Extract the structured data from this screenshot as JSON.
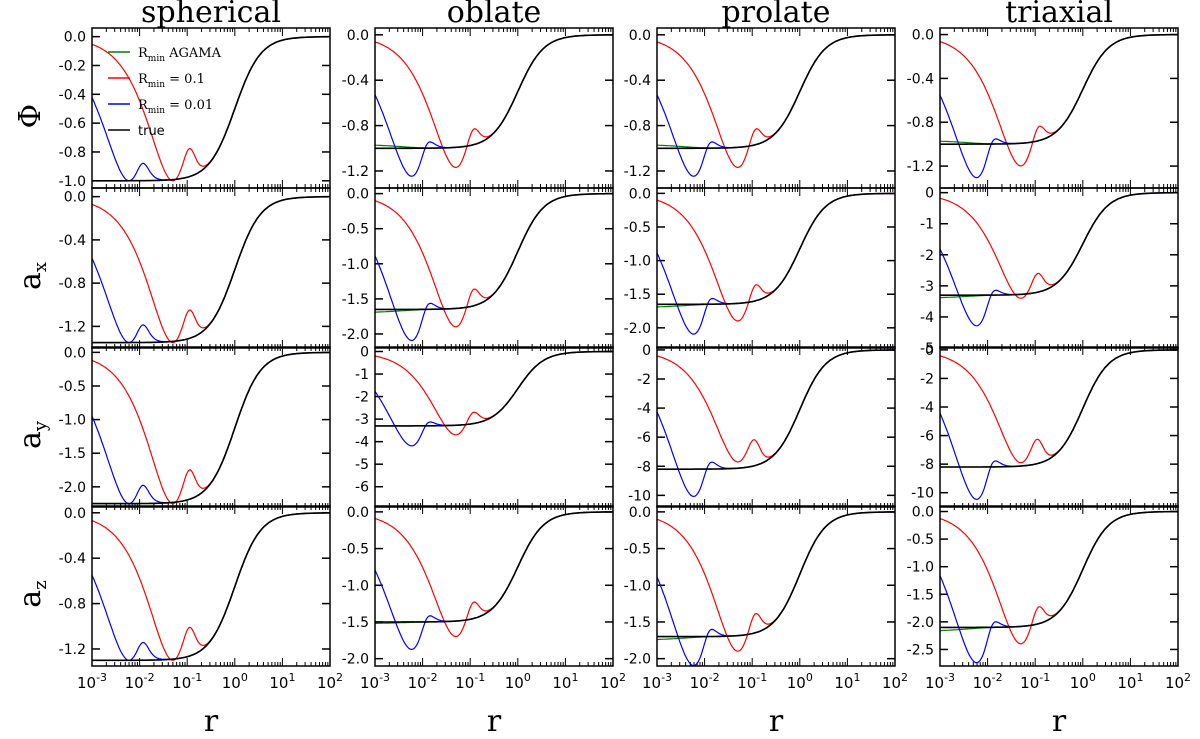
{
  "figure": {
    "columns": [
      "spherical",
      "oblate",
      "prolate",
      "triaxial"
    ],
    "row_labels": [
      {
        "main": "Φ",
        "sub": ""
      },
      {
        "main": "a",
        "sub": "x"
      },
      {
        "main": "a",
        "sub": "y"
      },
      {
        "main": "a",
        "sub": "z"
      }
    ],
    "x_axis_label": "r",
    "x_tick_labels": [
      {
        "base": "10",
        "exp": "-3"
      },
      {
        "base": "10",
        "exp": "-2"
      },
      {
        "base": "10",
        "exp": "-1"
      },
      {
        "base": "10",
        "exp": "0"
      },
      {
        "base": "10",
        "exp": "1"
      },
      {
        "base": "10",
        "exp": "2"
      }
    ],
    "legend": [
      {
        "main": "R",
        "sub": "min",
        "rest": " AGAMA",
        "color": "#008000"
      },
      {
        "main": "R",
        "sub": "min",
        "rest": " = 0.1",
        "color": "#ff0000"
      },
      {
        "main": "R",
        "sub": "min",
        "rest": " = 0.01",
        "color": "#0000ff"
      },
      {
        "main": "true",
        "sub": "",
        "rest": "",
        "color": "#000000"
      }
    ]
  },
  "chart_data": {
    "type": "line",
    "x_scale": "log",
    "xlim": [
      0.001,
      100
    ],
    "xlabel": "r",
    "columns": [
      "spherical",
      "oblate",
      "prolate",
      "triaxial"
    ],
    "rows": [
      "Φ",
      "a_x",
      "a_y",
      "a_z"
    ],
    "series_colors": {
      "agama": "#008000",
      "rmin_0.1": "#ff0000",
      "rmin_0.01": "#0000ff",
      "true": "#000000"
    },
    "panels": [
      [
        {
          "ylim": [
            -1.05,
            0.06
          ],
          "yticks": [
            0.0,
            -0.2,
            -0.4,
            -0.6,
            -0.8,
            -1.0
          ],
          "tick_labels": [
            "0.0",
            "-0.2",
            "-0.4",
            "-0.6",
            "-0.8",
            "-1.0"
          ],
          "center": -1.0,
          "low": -1.0,
          "min_r1": -1.0,
          "min_r2": -1.0
        },
        {
          "ylim": [
            -1.35,
            0.06
          ],
          "yticks": [
            0.0,
            -0.4,
            -0.8,
            -1.2
          ],
          "tick_labels": [
            "0.0",
            "-0.4",
            "-0.8",
            "-1.2"
          ],
          "center": -1.0,
          "low": -0.93,
          "min_r1": -1.17,
          "min_r2": -1.25
        },
        {
          "ylim": [
            -1.35,
            0.06
          ],
          "yticks": [
            0.0,
            -0.4,
            -0.8,
            -1.2
          ],
          "tick_labels": [
            "0.0",
            "-0.4",
            "-0.8",
            "-1.2"
          ],
          "center": -1.0,
          "low": -0.93,
          "min_r1": -1.17,
          "min_r2": -1.25
        },
        {
          "ylim": [
            -1.4,
            0.06
          ],
          "yticks": [
            0.0,
            -0.4,
            -0.8,
            -1.2
          ],
          "tick_labels": [
            "0.0",
            "-0.4",
            "-0.8",
            "-1.2"
          ],
          "center": -1.0,
          "low": -0.93,
          "min_r1": -1.2,
          "min_r2": -1.31
        }
      ],
      [
        {
          "ylim": [
            -1.4,
            0.08
          ],
          "yticks": [
            0.0,
            -0.4,
            -0.8,
            -1.2
          ],
          "tick_labels": [
            "0.0",
            "-0.4",
            "-0.8",
            "-1.2"
          ],
          "center": -1.35,
          "low": -1.35,
          "min_r1": -1.35,
          "min_r2": -1.35
        },
        {
          "ylim": [
            -2.2,
            0.08
          ],
          "yticks": [
            0.0,
            -0.5,
            -1.0,
            -1.5,
            -2.0
          ],
          "tick_labels": [
            "0.0",
            "-0.5",
            "-1.0",
            "-1.5",
            "-2.0"
          ],
          "center": -1.65,
          "low": -1.75,
          "min_r1": -1.9,
          "min_r2": -2.1
        },
        {
          "ylim": [
            -2.3,
            0.08
          ],
          "yticks": [
            0.0,
            -0.5,
            -1.0,
            -1.5,
            -2.0
          ],
          "tick_labels": [
            "0.0",
            "-0.5",
            "-1.0",
            "-1.5",
            "-2.0"
          ],
          "center": -1.65,
          "low": -1.75,
          "min_r1": -1.9,
          "min_r2": -2.1
        },
        {
          "ylim": [
            -5.0,
            0.15
          ],
          "yticks": [
            0,
            -1,
            -2,
            -3,
            -4,
            -5
          ],
          "tick_labels": [
            "0",
            "-1",
            "-2",
            "-3",
            "-4",
            "-5"
          ],
          "center": -3.3,
          "low": -3.5,
          "min_r1": -3.4,
          "min_r2": -4.3
        }
      ],
      [
        {
          "ylim": [
            -2.3,
            0.08
          ],
          "yticks": [
            0.0,
            -0.5,
            -1.0,
            -1.5,
            -2.0
          ],
          "tick_labels": [
            "0.0",
            "-0.5",
            "-1.0",
            "-1.5",
            "-2.0"
          ],
          "center": -2.25,
          "low": -2.25,
          "min_r1": -2.25,
          "min_r2": -2.25
        },
        {
          "ylim": [
            -6.9,
            0.2
          ],
          "yticks": [
            0,
            -1,
            -2,
            -3,
            -4,
            -5,
            -6
          ],
          "tick_labels": [
            "0",
            "-1",
            "-2",
            "-3",
            "-4",
            "-5",
            "-6"
          ],
          "center": -3.3,
          "low": -3.3,
          "min_r1": -3.7,
          "min_r2": -4.2
        },
        {
          "ylim": [
            -10.8,
            0.2
          ],
          "yticks": [
            0,
            -2,
            -4,
            -6,
            -8,
            -10
          ],
          "tick_labels": [
            "0",
            "-2",
            "-4",
            "-6",
            "-8",
            "-10"
          ],
          "center": -8.2,
          "low": -8.2,
          "min_r1": -7.7,
          "min_r2": -10.1
        },
        {
          "ylim": [
            -11.0,
            0.2
          ],
          "yticks": [
            0,
            -2,
            -4,
            -6,
            -8,
            -10
          ],
          "tick_labels": [
            "0",
            "-2",
            "-4",
            "-6",
            "-8",
            "-10"
          ],
          "center": -8.2,
          "low": -8.2,
          "min_r1": -7.9,
          "min_r2": -10.5
        }
      ],
      [
        {
          "ylim": [
            -1.35,
            0.06
          ],
          "yticks": [
            0.0,
            -0.4,
            -0.8,
            -1.2
          ],
          "tick_labels": [
            "0.0",
            "-0.4",
            "-0.8",
            "-1.2"
          ],
          "center": -1.3,
          "low": -1.3,
          "min_r1": -1.3,
          "min_r2": -1.3
        },
        {
          "ylim": [
            -2.1,
            0.08
          ],
          "yticks": [
            0.0,
            -0.5,
            -1.0,
            -1.5,
            -2.0
          ],
          "tick_labels": [
            "0.0",
            "-0.5",
            "-1.0",
            "-1.5",
            "-2.0"
          ],
          "center": -1.5,
          "low": -1.55,
          "min_r1": -1.7,
          "min_r2": -1.88
        },
        {
          "ylim": [
            -2.1,
            0.08
          ],
          "yticks": [
            0.0,
            -0.5,
            -1.0,
            -1.5,
            -2.0
          ],
          "tick_labels": [
            "0.0",
            "-0.5",
            "-1.0",
            "-1.5",
            "-2.0"
          ],
          "center": -1.7,
          "low": -1.8,
          "min_r1": -1.9,
          "min_r2": -2.1
        },
        {
          "ylim": [
            -2.8,
            0.1
          ],
          "yticks": [
            0.0,
            -0.5,
            -1.0,
            -1.5,
            -2.0,
            -2.5
          ],
          "tick_labels": [
            "0.0",
            "-0.5",
            "-1.0",
            "-1.5",
            "-2.0",
            "-2.5"
          ],
          "center": -2.1,
          "low": -2.25,
          "min_r1": -2.4,
          "min_r2": -2.75
        }
      ]
    ]
  }
}
